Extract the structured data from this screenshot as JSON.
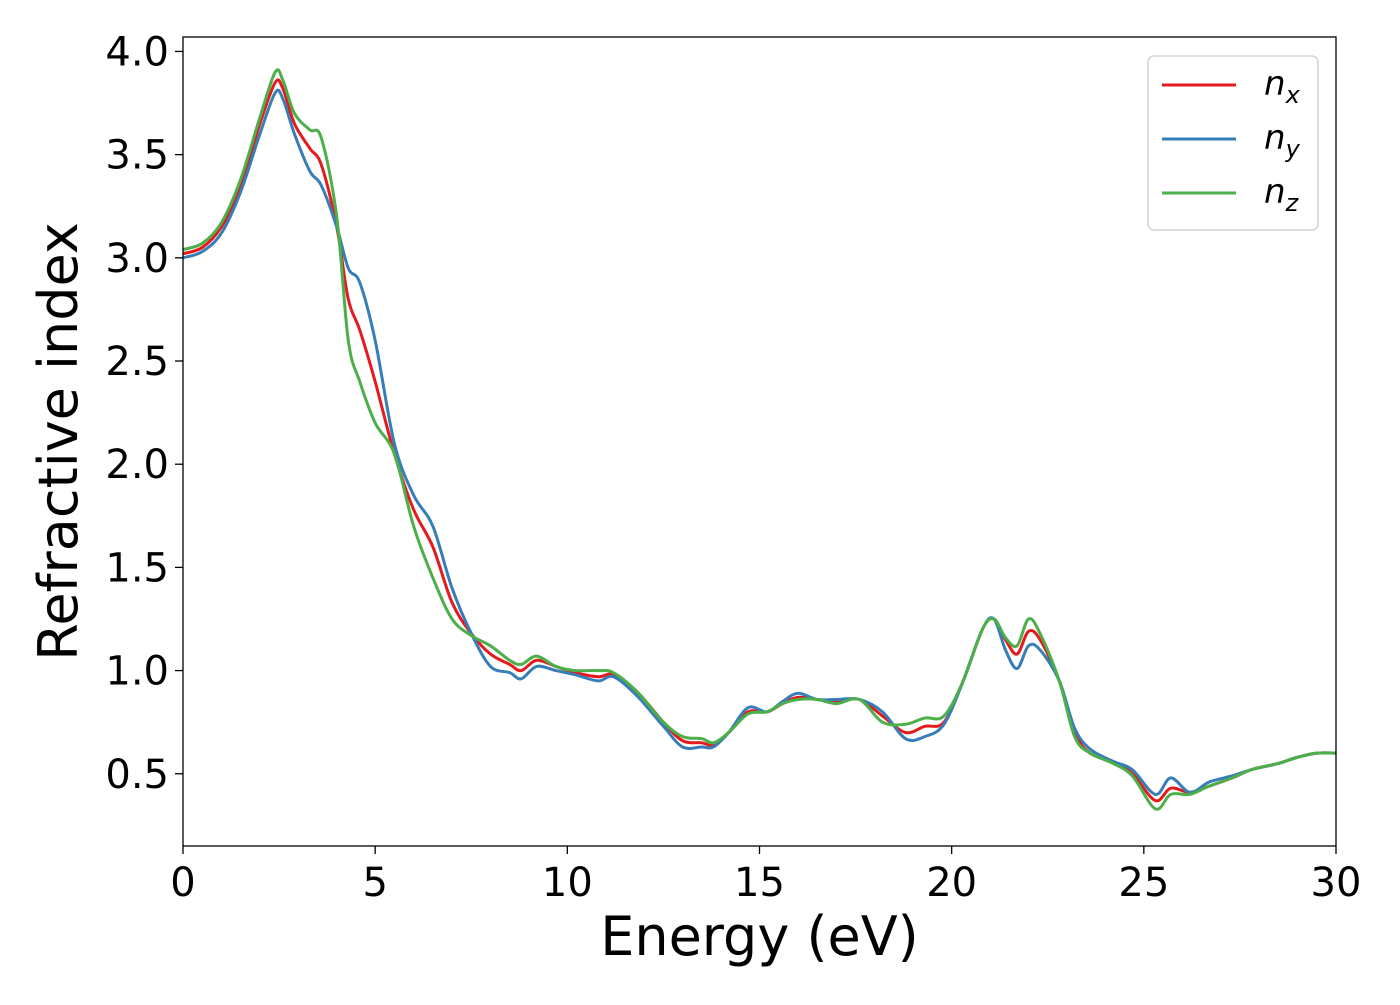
{
  "chart_data": {
    "type": "line",
    "title": "",
    "xlabel": "Energy (eV)",
    "ylabel": "Refractive index",
    "xlim": [
      0,
      30
    ],
    "ylim": [
      0.15,
      4.07
    ],
    "x_ticks": [
      0,
      5,
      10,
      15,
      20,
      25,
      30
    ],
    "y_ticks": [
      0.5,
      1.0,
      1.5,
      2.0,
      2.5,
      3.0,
      3.5,
      4.0
    ],
    "x_tick_labels": [
      "0",
      "5",
      "10",
      "15",
      "20",
      "25",
      "30"
    ],
    "y_tick_labels": [
      "0.5",
      "1.0",
      "1.5",
      "2.0",
      "2.5",
      "3.0",
      "3.5",
      "4.0"
    ],
    "grid": false,
    "legend_position": "top-right",
    "series": [
      {
        "name": "n_x",
        "legend_base": "n",
        "legend_sub": "x",
        "color": "#e41a1c",
        "points": [
          [
            0,
            3.02
          ],
          [
            0.5,
            3.05
          ],
          [
            1.0,
            3.15
          ],
          [
            1.5,
            3.35
          ],
          [
            2.0,
            3.65
          ],
          [
            2.4,
            3.85
          ],
          [
            2.6,
            3.82
          ],
          [
            2.9,
            3.65
          ],
          [
            3.3,
            3.53
          ],
          [
            3.6,
            3.45
          ],
          [
            4.0,
            3.15
          ],
          [
            4.3,
            2.8
          ],
          [
            4.6,
            2.65
          ],
          [
            5.0,
            2.4
          ],
          [
            5.5,
            2.05
          ],
          [
            6.0,
            1.78
          ],
          [
            6.5,
            1.6
          ],
          [
            7.0,
            1.33
          ],
          [
            7.5,
            1.18
          ],
          [
            8.0,
            1.08
          ],
          [
            8.5,
            1.03
          ],
          [
            8.8,
            1.0
          ],
          [
            9.2,
            1.05
          ],
          [
            9.7,
            1.02
          ],
          [
            10.2,
            0.99
          ],
          [
            10.8,
            0.97
          ],
          [
            11.2,
            0.98
          ],
          [
            11.8,
            0.9
          ],
          [
            12.5,
            0.75
          ],
          [
            13.0,
            0.66
          ],
          [
            13.5,
            0.65
          ],
          [
            13.8,
            0.64
          ],
          [
            14.2,
            0.7
          ],
          [
            14.7,
            0.8
          ],
          [
            15.2,
            0.8
          ],
          [
            15.6,
            0.84
          ],
          [
            16.0,
            0.87
          ],
          [
            16.5,
            0.86
          ],
          [
            17.0,
            0.85
          ],
          [
            17.6,
            0.86
          ],
          [
            18.2,
            0.78
          ],
          [
            18.8,
            0.7
          ],
          [
            19.3,
            0.73
          ],
          [
            19.8,
            0.75
          ],
          [
            20.3,
            0.95
          ],
          [
            20.8,
            1.2
          ],
          [
            21.1,
            1.25
          ],
          [
            21.4,
            1.15
          ],
          [
            21.7,
            1.08
          ],
          [
            22.0,
            1.19
          ],
          [
            22.3,
            1.15
          ],
          [
            22.8,
            0.95
          ],
          [
            23.2,
            0.7
          ],
          [
            23.6,
            0.6
          ],
          [
            24.2,
            0.56
          ],
          [
            24.7,
            0.5
          ],
          [
            25.3,
            0.37
          ],
          [
            25.7,
            0.43
          ],
          [
            26.2,
            0.41
          ],
          [
            26.7,
            0.44
          ],
          [
            27.3,
            0.48
          ],
          [
            27.8,
            0.52
          ],
          [
            28.5,
            0.55
          ],
          [
            29.0,
            0.58
          ],
          [
            29.5,
            0.6
          ],
          [
            30.0,
            0.6
          ]
        ]
      },
      {
        "name": "n_y",
        "legend_base": "n",
        "legend_sub": "y",
        "color": "#377eb8",
        "points": [
          [
            0,
            3.0
          ],
          [
            0.5,
            3.03
          ],
          [
            1.0,
            3.12
          ],
          [
            1.5,
            3.32
          ],
          [
            2.0,
            3.6
          ],
          [
            2.4,
            3.8
          ],
          [
            2.6,
            3.77
          ],
          [
            2.9,
            3.6
          ],
          [
            3.3,
            3.42
          ],
          [
            3.6,
            3.35
          ],
          [
            4.0,
            3.15
          ],
          [
            4.3,
            2.95
          ],
          [
            4.6,
            2.88
          ],
          [
            5.0,
            2.6
          ],
          [
            5.5,
            2.1
          ],
          [
            6.0,
            1.85
          ],
          [
            6.5,
            1.7
          ],
          [
            7.0,
            1.4
          ],
          [
            7.5,
            1.18
          ],
          [
            8.0,
            1.02
          ],
          [
            8.5,
            0.99
          ],
          [
            8.8,
            0.96
          ],
          [
            9.2,
            1.02
          ],
          [
            9.7,
            1.0
          ],
          [
            10.2,
            0.98
          ],
          [
            10.8,
            0.95
          ],
          [
            11.2,
            0.97
          ],
          [
            11.8,
            0.88
          ],
          [
            12.5,
            0.73
          ],
          [
            13.0,
            0.63
          ],
          [
            13.5,
            0.63
          ],
          [
            13.8,
            0.63
          ],
          [
            14.2,
            0.7
          ],
          [
            14.7,
            0.82
          ],
          [
            15.2,
            0.8
          ],
          [
            15.6,
            0.85
          ],
          [
            16.0,
            0.89
          ],
          [
            16.5,
            0.86
          ],
          [
            17.0,
            0.86
          ],
          [
            17.6,
            0.86
          ],
          [
            18.2,
            0.8
          ],
          [
            18.8,
            0.67
          ],
          [
            19.3,
            0.68
          ],
          [
            19.8,
            0.74
          ],
          [
            20.3,
            0.95
          ],
          [
            20.8,
            1.2
          ],
          [
            21.1,
            1.25
          ],
          [
            21.4,
            1.1
          ],
          [
            21.7,
            1.01
          ],
          [
            22.0,
            1.12
          ],
          [
            22.3,
            1.1
          ],
          [
            22.8,
            0.95
          ],
          [
            23.2,
            0.72
          ],
          [
            23.6,
            0.62
          ],
          [
            24.2,
            0.56
          ],
          [
            24.7,
            0.52
          ],
          [
            25.3,
            0.4
          ],
          [
            25.7,
            0.48
          ],
          [
            26.2,
            0.41
          ],
          [
            26.7,
            0.46
          ],
          [
            27.3,
            0.49
          ],
          [
            27.8,
            0.52
          ],
          [
            28.5,
            0.55
          ],
          [
            29.0,
            0.58
          ],
          [
            29.5,
            0.6
          ],
          [
            30.0,
            0.6
          ]
        ]
      },
      {
        "name": "n_z",
        "legend_base": "n",
        "legend_sub": "z",
        "color": "#4daf4a",
        "points": [
          [
            0,
            3.04
          ],
          [
            0.5,
            3.07
          ],
          [
            1.0,
            3.17
          ],
          [
            1.5,
            3.38
          ],
          [
            2.0,
            3.68
          ],
          [
            2.4,
            3.9
          ],
          [
            2.6,
            3.86
          ],
          [
            2.9,
            3.7
          ],
          [
            3.3,
            3.62
          ],
          [
            3.6,
            3.58
          ],
          [
            4.0,
            3.2
          ],
          [
            4.3,
            2.6
          ],
          [
            4.6,
            2.4
          ],
          [
            5.0,
            2.2
          ],
          [
            5.5,
            2.05
          ],
          [
            6.0,
            1.7
          ],
          [
            6.5,
            1.45
          ],
          [
            7.0,
            1.25
          ],
          [
            7.5,
            1.17
          ],
          [
            8.0,
            1.12
          ],
          [
            8.5,
            1.05
          ],
          [
            8.8,
            1.03
          ],
          [
            9.2,
            1.07
          ],
          [
            9.7,
            1.02
          ],
          [
            10.2,
            1.0
          ],
          [
            10.8,
            1.0
          ],
          [
            11.2,
            0.99
          ],
          [
            11.8,
            0.9
          ],
          [
            12.5,
            0.75
          ],
          [
            13.0,
            0.68
          ],
          [
            13.5,
            0.67
          ],
          [
            13.8,
            0.65
          ],
          [
            14.2,
            0.7
          ],
          [
            14.7,
            0.79
          ],
          [
            15.2,
            0.8
          ],
          [
            15.6,
            0.84
          ],
          [
            16.0,
            0.86
          ],
          [
            16.5,
            0.86
          ],
          [
            17.0,
            0.84
          ],
          [
            17.6,
            0.86
          ],
          [
            18.2,
            0.75
          ],
          [
            18.8,
            0.74
          ],
          [
            19.3,
            0.77
          ],
          [
            19.8,
            0.78
          ],
          [
            20.3,
            0.95
          ],
          [
            20.8,
            1.2
          ],
          [
            21.1,
            1.25
          ],
          [
            21.4,
            1.16
          ],
          [
            21.7,
            1.12
          ],
          [
            22.0,
            1.25
          ],
          [
            22.3,
            1.18
          ],
          [
            22.8,
            0.95
          ],
          [
            23.2,
            0.68
          ],
          [
            23.6,
            0.6
          ],
          [
            24.2,
            0.55
          ],
          [
            24.7,
            0.49
          ],
          [
            25.3,
            0.33
          ],
          [
            25.7,
            0.4
          ],
          [
            26.2,
            0.4
          ],
          [
            26.7,
            0.44
          ],
          [
            27.3,
            0.48
          ],
          [
            27.8,
            0.52
          ],
          [
            28.5,
            0.55
          ],
          [
            29.0,
            0.58
          ],
          [
            29.5,
            0.6
          ],
          [
            30.0,
            0.6
          ]
        ]
      }
    ]
  }
}
